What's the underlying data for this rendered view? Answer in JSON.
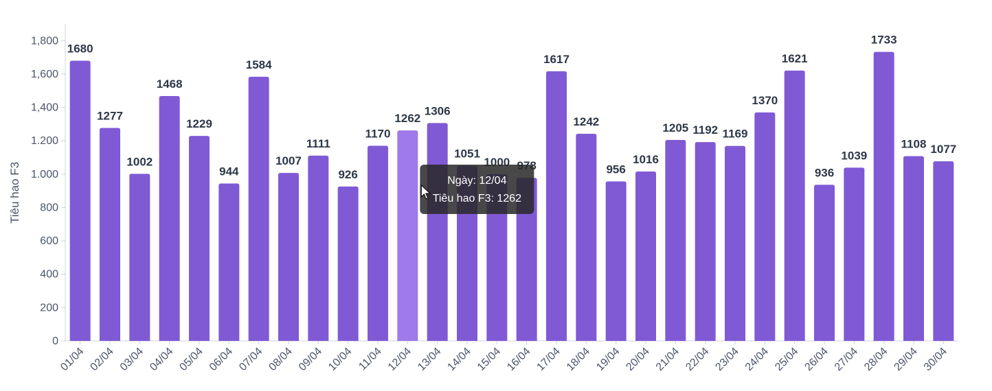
{
  "chart_data": {
    "type": "bar",
    "categories": [
      "01/04",
      "02/04",
      "03/04",
      "04/04",
      "05/04",
      "06/04",
      "07/04",
      "08/04",
      "09/04",
      "10/04",
      "11/04",
      "12/04",
      "13/04",
      "14/04",
      "15/04",
      "16/04",
      "17/04",
      "18/04",
      "19/04",
      "20/04",
      "21/04",
      "22/04",
      "23/04",
      "24/04",
      "25/04",
      "26/04",
      "27/04",
      "28/04",
      "29/04",
      "30/04"
    ],
    "series": [
      {
        "name": "Tiêu hao F3",
        "values": [
          1680,
          1277,
          1002,
          1468,
          1229,
          944,
          1584,
          1007,
          1111,
          926,
          1170,
          1262,
          1306,
          1051,
          1000,
          978,
          1617,
          1242,
          956,
          1016,
          1205,
          1192,
          1169,
          1370,
          1621,
          936,
          1039,
          1733,
          1108,
          1077
        ]
      }
    ],
    "title": "",
    "xlabel": "",
    "ylabel": "Tiêu hao F3",
    "ylim": [
      0,
      1900
    ],
    "yticks": [
      0,
      200,
      400,
      600,
      800,
      1000,
      1200,
      1400,
      1600,
      1800
    ],
    "ytick_labels": [
      "0",
      "200",
      "400",
      "600",
      "800",
      "1.000",
      "1.200",
      "1,400",
      "1,600",
      "1,800"
    ],
    "grid": false,
    "legend": "none",
    "colors": {
      "bar": "#805ad5",
      "bar_highlight": "#9f7aea",
      "axis": "#cbd5e0"
    },
    "highlighted_index": 11,
    "tooltip": {
      "line1": "Ngày: 12/04",
      "line2": "Tiêu hao F3: 1262"
    }
  }
}
